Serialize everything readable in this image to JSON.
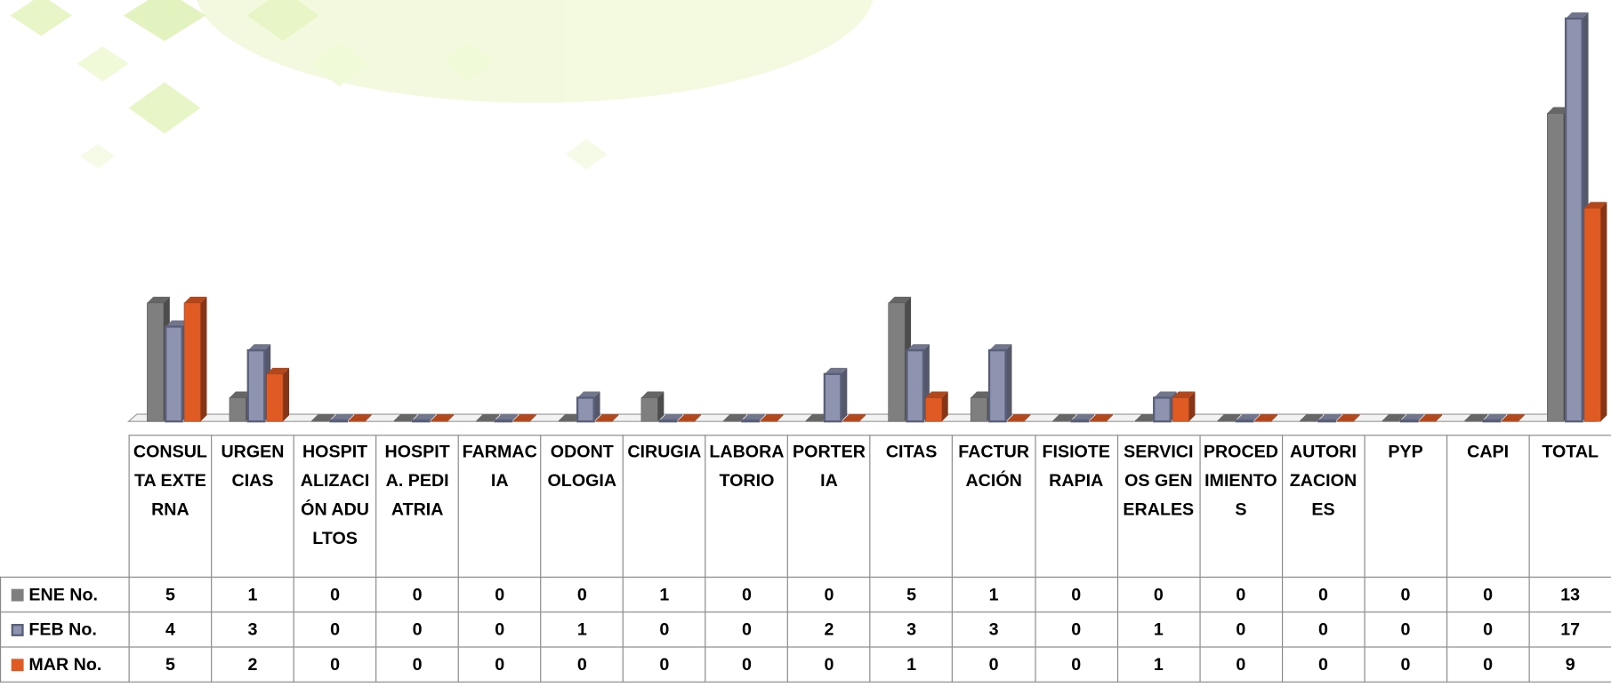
{
  "chart_data": {
    "type": "bar3d",
    "categories": [
      "CONSULTA EXTERNA",
      "URGENCIAS",
      "HOSPITALIZACIÓN ADULTOS",
      "HOSPITA. PEDIATRIA",
      "FARMACIA",
      "ODONTOLOGIA",
      "CIRUGIA",
      "LABORATORIO",
      "PORTERIA",
      "CITAS",
      "FACTURACIÓN",
      "FISIOTERAPIA",
      "SERVICIOS GENERALES",
      "PROCEDIMIENTOS",
      "AUTORIZACIONES",
      "PYP",
      "CAPI",
      "TOTAL"
    ],
    "series": [
      {
        "name": "ENE No.",
        "color": "#7f7f7f",
        "values": [
          5,
          1,
          0,
          0,
          0,
          0,
          1,
          0,
          0,
          5,
          1,
          0,
          0,
          0,
          0,
          0,
          0,
          13
        ]
      },
      {
        "name": "FEB No.",
        "color": "#8e93b0",
        "values": [
          4,
          3,
          0,
          0,
          0,
          1,
          0,
          0,
          2,
          3,
          3,
          0,
          1,
          0,
          0,
          0,
          0,
          17
        ]
      },
      {
        "name": "MAR No.",
        "color": "#e05a24",
        "values": [
          5,
          2,
          0,
          0,
          0,
          0,
          0,
          0,
          0,
          1,
          0,
          0,
          1,
          0,
          0,
          0,
          0,
          9
        ]
      }
    ],
    "ylim": [
      0,
      17
    ]
  }
}
